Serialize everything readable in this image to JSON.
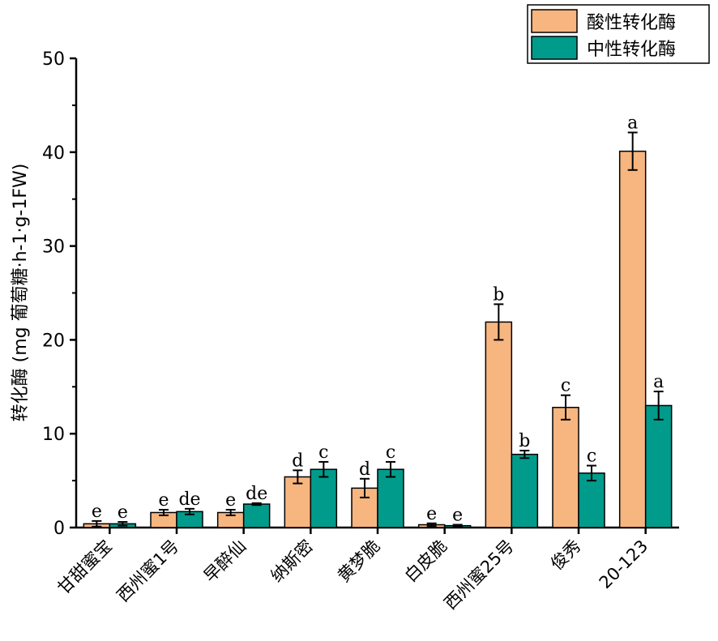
{
  "chart_data": {
    "type": "bar",
    "ylabel": "转化酶 (mg 葡萄糖·h-1·g-1FW)",
    "xlabel": "",
    "ylim": [
      0,
      50
    ],
    "yticks": [
      0,
      10,
      20,
      30,
      40,
      50
    ],
    "categories": [
      "甘甜蜜宝",
      "西州蜜1号",
      "早醉仙",
      "纳斯密",
      "黄梦脆",
      "白皮脆",
      "西州蜜25号",
      "俊秀",
      "20-123"
    ],
    "legend_position": "top-right",
    "series": [
      {
        "name": "酸性转化酶",
        "color": "#F7B580",
        "values": [
          0.4,
          1.6,
          1.6,
          5.4,
          4.2,
          0.3,
          21.9,
          12.8,
          40.1
        ],
        "errors": [
          0.3,
          0.3,
          0.3,
          0.7,
          1.0,
          0.15,
          1.9,
          1.3,
          2.0
        ],
        "labels": [
          "e",
          "e",
          "e",
          "d",
          "d",
          "e",
          "b",
          "c",
          "a"
        ]
      },
      {
        "name": "中性转化酶",
        "color": "#009B8B",
        "values": [
          0.4,
          1.7,
          2.5,
          6.2,
          6.2,
          0.2,
          7.8,
          5.8,
          13.0
        ],
        "errors": [
          0.2,
          0.3,
          0.1,
          0.8,
          0.8,
          0.1,
          0.4,
          0.8,
          1.5
        ],
        "labels": [
          "e",
          "de",
          "de",
          "c",
          "c",
          "e",
          "b",
          "c",
          "a"
        ]
      }
    ]
  }
}
